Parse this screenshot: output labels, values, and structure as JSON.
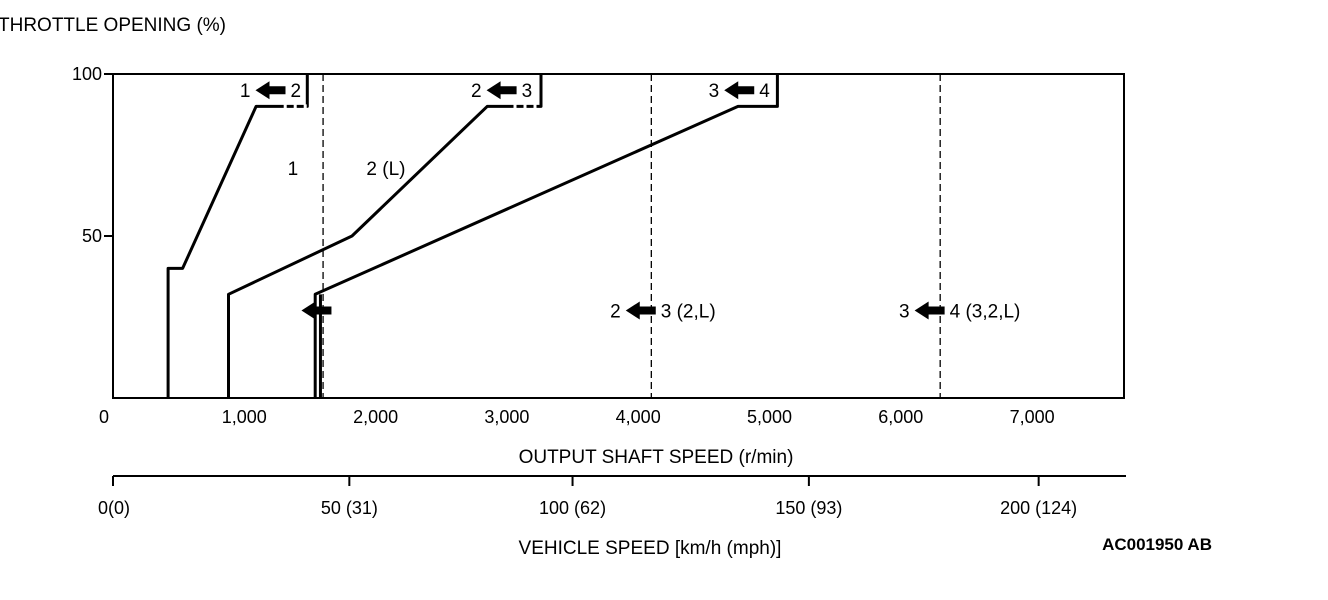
{
  "chart_data": {
    "type": "line",
    "y_title": "THROTTLE OPENING (%)",
    "xlabel": "OUTPUT SHAFT SPEED (r/min)",
    "x2label": "VEHICLE SPEED [km/h (mph)]",
    "reference_code": "AC001950 AB",
    "xlim": [
      0,
      7700
    ],
    "ylim": [
      0,
      100
    ],
    "x_ticks": [
      {
        "value": 0,
        "label": "0"
      },
      {
        "value": 1000,
        "label": "1,000"
      },
      {
        "value": 2000,
        "label": "2,000"
      },
      {
        "value": 3000,
        "label": "3,000"
      },
      {
        "value": 4000,
        "label": "4,000"
      },
      {
        "value": 5000,
        "label": "5,000"
      },
      {
        "value": 6000,
        "label": "6,000"
      },
      {
        "value": 7000,
        "label": "7,000"
      }
    ],
    "y_ticks": [
      {
        "value": 50,
        "label": "50"
      },
      {
        "value": 100,
        "label": "100"
      }
    ],
    "x2_ticks": [
      {
        "value": 0,
        "label": "0(0)"
      },
      {
        "value": 1800,
        "label": "50 (31)"
      },
      {
        "value": 3500,
        "label": "100 (62)"
      },
      {
        "value": 5300,
        "label": "150 (93)"
      },
      {
        "value": 7050,
        "label": "200 (124)"
      }
    ],
    "series": [
      {
        "values": [
          [
            420,
            0
          ],
          [
            420,
            40
          ],
          [
            530,
            40
          ],
          [
            1090,
            90
          ],
          [
            1480,
            90
          ],
          [
            1480,
            100
          ]
        ]
      },
      {
        "values": [
          [
            880,
            0
          ],
          [
            880,
            32
          ],
          [
            1820,
            50
          ],
          [
            2850,
            90
          ],
          [
            3260,
            90
          ],
          [
            3260,
            100
          ]
        ]
      },
      {
        "values": [
          [
            1540,
            0
          ],
          [
            1540,
            32
          ],
          [
            4760,
            90
          ],
          [
            5060,
            90
          ],
          [
            5060,
            100
          ]
        ]
      }
    ],
    "dashed_segments": [
      [
        [
          1300,
          90
        ],
        [
          1480,
          90
        ]
      ],
      [
        [
          3050,
          90
        ],
        [
          3260,
          90
        ]
      ]
    ],
    "vertical_dashed_lines": [
      1600,
      4100,
      6300
    ],
    "vertical_solid_lines": [
      1580
    ],
    "shift_labels": [
      {
        "x": 1230,
        "y": 95,
        "from": "1",
        "to": "2"
      },
      {
        "x": 2990,
        "y": 95,
        "from": "2",
        "to": "3"
      },
      {
        "x": 4800,
        "y": 95,
        "from": "3",
        "to": "4"
      },
      {
        "x": 1580,
        "y": 27,
        "from": "",
        "to": ""
      },
      {
        "x": 4050,
        "y": 27,
        "from": "2",
        "to": "3 (2,L)"
      },
      {
        "x": 6250,
        "y": 27,
        "from": "3",
        "to": "4 (3,2,L)"
      }
    ],
    "region_labels": [
      {
        "x": 1330,
        "y": 71,
        "text": "1"
      },
      {
        "x": 1930,
        "y": 71,
        "text": "2 (L)"
      }
    ],
    "grid": false,
    "legend": "none"
  }
}
